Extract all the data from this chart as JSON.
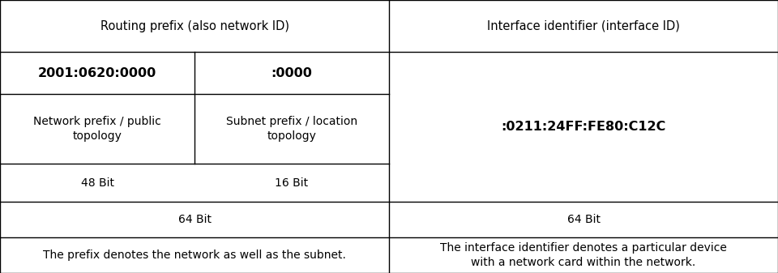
{
  "bg_color": "#ffffff",
  "border_color": "#000000",
  "text_color": "#000000",
  "fig_width": 9.6,
  "fig_height": 3.37,
  "col_split": 0.5,
  "sub_split": 0.25,
  "header_left": "Routing prefix (also network ID)",
  "header_right": "Interface identifier (interface ID)",
  "addr_left1": "2001:0620:0000",
  "addr_left2": ":0000",
  "addr_right": ":0211:24FF:FE80:C12C",
  "label_ll": "Network prefix / public\ntopology",
  "label_lr": "Subnet prefix / location\ntopology",
  "bits_ll": "48 Bit",
  "bits_lr": "16 Bit",
  "bits_left_total": "64 Bit",
  "bits_right_total": "64 Bit",
  "footer_left": "The prefix denotes the network as well as the subnet.",
  "footer_right": "The interface identifier denotes a particular device\nwith a network card within the network.",
  "font_size_header": 10.5,
  "font_size_addr": 11.5,
  "font_size_label": 10,
  "font_size_bits": 10,
  "font_size_footer": 10,
  "rows": [
    1.0,
    0.81,
    0.655,
    0.4,
    0.26,
    0.13,
    0.0
  ]
}
